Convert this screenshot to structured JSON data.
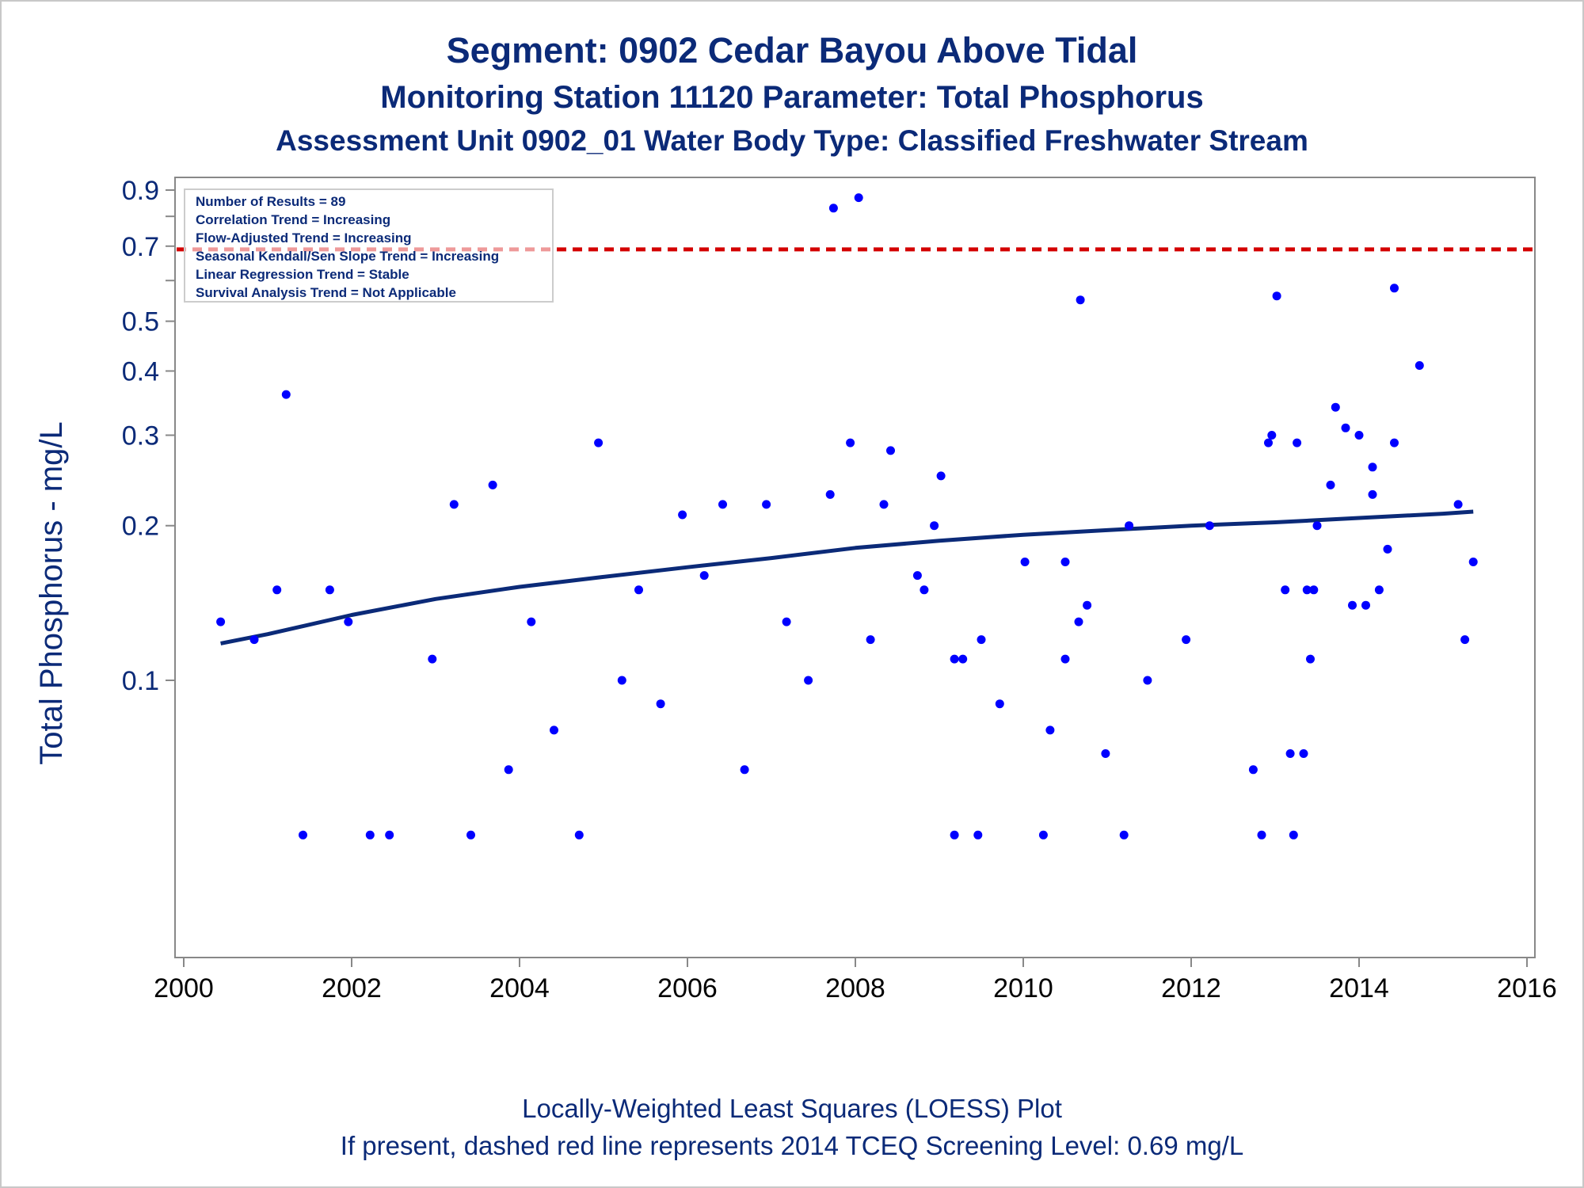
{
  "colors": {
    "text": "#0b2a78",
    "points": "#0000ff",
    "loess": "#0b2a78",
    "screening_line": "#d40000",
    "axis": "#888888"
  },
  "chart_data": {
    "type": "scatter",
    "title": "Segment: 0902  Cedar Bayou Above Tidal",
    "subtitle": "Monitoring Station 11120 Parameter: Total Phosphorus",
    "subtitle2": "Assessment Unit 0902_01   Water Body Type: Classified Freshwater Stream",
    "xlabel": "",
    "ylabel": "Total Phosphorus - mg/L",
    "y_scale": "log",
    "xlim": [
      2000,
      2016
    ],
    "x_ticks": [
      2000,
      2002,
      2004,
      2006,
      2008,
      2010,
      2012,
      2014,
      2016
    ],
    "y_ticks": [
      0.1,
      0.2,
      0.3,
      0.4,
      0.5,
      0.7,
      0.9
    ],
    "y_minor_ticks": [
      0.6,
      0.8
    ],
    "grid": false,
    "legend_box": {
      "placement": "top-left",
      "lines": [
        "Number of Results = 89",
        "Correlation Trend = Increasing",
        "Flow-Adjusted Trend = Increasing",
        "Seasonal Kendall/Sen Slope Trend = Increasing",
        "Linear Regression Trend = Stable",
        "Survival Analysis Trend = Not Applicable"
      ]
    },
    "screening_level": 0.69,
    "series": [
      {
        "kind": "points",
        "points": [
          [
            2000.44,
            0.13
          ],
          [
            2000.84,
            0.12
          ],
          [
            2001.11,
            0.15
          ],
          [
            2001.22,
            0.36
          ],
          [
            2001.42,
            0.05
          ],
          [
            2001.74,
            0.15
          ],
          [
            2001.96,
            0.13
          ],
          [
            2002.22,
            0.05
          ],
          [
            2002.45,
            0.05
          ],
          [
            2002.96,
            0.11
          ],
          [
            2003.22,
            0.22
          ],
          [
            2003.42,
            0.05
          ],
          [
            2003.68,
            0.24
          ],
          [
            2003.87,
            0.067
          ],
          [
            2004.14,
            0.13
          ],
          [
            2004.41,
            0.08
          ],
          [
            2004.71,
            0.05
          ],
          [
            2004.94,
            0.29
          ],
          [
            2005.22,
            0.1
          ],
          [
            2005.42,
            0.15
          ],
          [
            2005.68,
            0.09
          ],
          [
            2005.94,
            0.21
          ],
          [
            2006.2,
            0.16
          ],
          [
            2006.42,
            0.22
          ],
          [
            2006.68,
            0.067
          ],
          [
            2006.94,
            0.22
          ],
          [
            2007.18,
            0.13
          ],
          [
            2007.44,
            0.1
          ],
          [
            2007.7,
            0.23
          ],
          [
            2007.74,
            0.83
          ],
          [
            2007.94,
            0.29
          ],
          [
            2008.04,
            0.87
          ],
          [
            2008.18,
            0.12
          ],
          [
            2008.34,
            0.22
          ],
          [
            2008.42,
            0.28
          ],
          [
            2008.74,
            0.16
          ],
          [
            2008.82,
            0.15
          ],
          [
            2008.94,
            0.2
          ],
          [
            2009.02,
            0.25
          ],
          [
            2009.18,
            0.11
          ],
          [
            2009.18,
            0.05
          ],
          [
            2009.28,
            0.11
          ],
          [
            2009.46,
            0.05
          ],
          [
            2009.5,
            0.12
          ],
          [
            2009.72,
            0.09
          ],
          [
            2010.02,
            0.17
          ],
          [
            2010.24,
            0.05
          ],
          [
            2010.32,
            0.08
          ],
          [
            2010.5,
            0.11
          ],
          [
            2010.5,
            0.17
          ],
          [
            2010.66,
            0.13
          ],
          [
            2010.68,
            0.55
          ],
          [
            2010.76,
            0.14
          ],
          [
            2010.98,
            0.072
          ],
          [
            2011.2,
            0.05
          ],
          [
            2011.26,
            0.2
          ],
          [
            2011.48,
            0.1
          ],
          [
            2011.94,
            0.12
          ],
          [
            2012.22,
            0.2
          ],
          [
            2012.74,
            0.067
          ],
          [
            2012.84,
            0.05
          ],
          [
            2012.92,
            0.29
          ],
          [
            2012.96,
            0.3
          ],
          [
            2013.02,
            0.56
          ],
          [
            2013.12,
            0.15
          ],
          [
            2013.18,
            0.072
          ],
          [
            2013.22,
            0.05
          ],
          [
            2013.26,
            0.29
          ],
          [
            2013.34,
            0.072
          ],
          [
            2013.38,
            0.15
          ],
          [
            2013.42,
            0.11
          ],
          [
            2013.46,
            0.15
          ],
          [
            2013.5,
            0.2
          ],
          [
            2013.66,
            0.24
          ],
          [
            2013.72,
            0.34
          ],
          [
            2013.84,
            0.31
          ],
          [
            2013.92,
            0.14
          ],
          [
            2014.0,
            0.3
          ],
          [
            2014.08,
            0.14
          ],
          [
            2014.16,
            0.26
          ],
          [
            2014.16,
            0.23
          ],
          [
            2014.24,
            0.15
          ],
          [
            2014.34,
            0.18
          ],
          [
            2014.42,
            0.29
          ],
          [
            2014.42,
            0.58
          ],
          [
            2014.72,
            0.41
          ],
          [
            2015.18,
            0.22
          ],
          [
            2015.26,
            0.12
          ],
          [
            2015.36,
            0.17
          ]
        ]
      },
      {
        "kind": "loess",
        "points": [
          [
            2000.44,
            0.118
          ],
          [
            2001.0,
            0.123
          ],
          [
            2002.0,
            0.134
          ],
          [
            2003.0,
            0.144
          ],
          [
            2004.0,
            0.152
          ],
          [
            2005.0,
            0.159
          ],
          [
            2006.0,
            0.166
          ],
          [
            2007.0,
            0.173
          ],
          [
            2008.0,
            0.181
          ],
          [
            2009.0,
            0.187
          ],
          [
            2010.0,
            0.192
          ],
          [
            2011.0,
            0.196
          ],
          [
            2012.0,
            0.2
          ],
          [
            2013.0,
            0.203
          ],
          [
            2014.0,
            0.207
          ],
          [
            2015.0,
            0.211
          ],
          [
            2015.36,
            0.213
          ]
        ]
      }
    ]
  },
  "footer": {
    "line1": "Locally-Weighted Least Squares (LOESS) Plot",
    "line2": "If present, dashed red line represents 2014 TCEQ Screening Level: 0.69 mg/L"
  }
}
